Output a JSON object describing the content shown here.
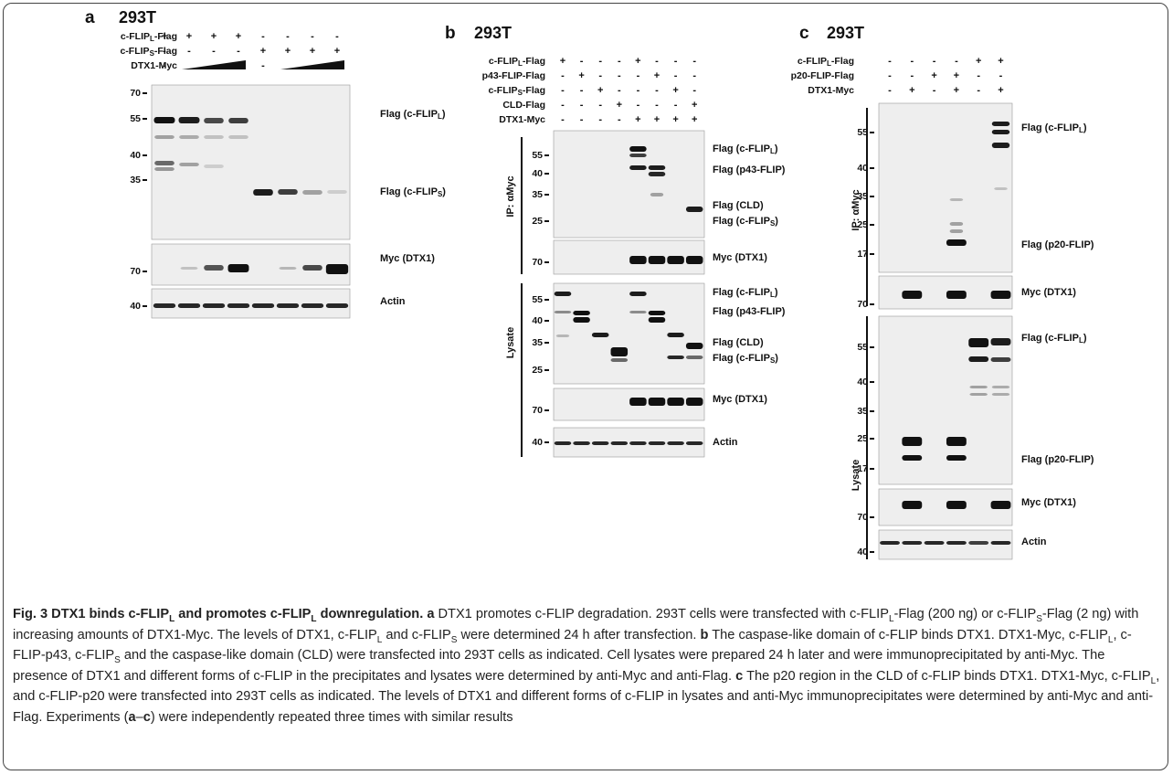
{
  "panels": [
    {
      "letter": "a",
      "cell": "293T",
      "rows": [
        {
          "label": {
            "text": "c-FLIP",
            "sub": "L",
            "rest": "-Flag"
          },
          "signs": [
            "+",
            "+",
            "+",
            "+",
            "-",
            "-",
            "-",
            "-"
          ]
        },
        {
          "label": {
            "text": "c-FLIP",
            "sub": "S",
            "rest": "-Flag"
          },
          "signs": [
            "-",
            "-",
            "-",
            "-",
            "+",
            "+",
            "+",
            "+"
          ]
        },
        {
          "label": "DTX1-Myc",
          "signs": [
            "-",
            null,
            null,
            null,
            "-",
            null,
            null,
            null
          ]
        }
      ],
      "blots": [
        {
          "markers": [
            70,
            55,
            40,
            35
          ],
          "labels": [
            {
              "text": "Flag (c-FLIP",
              "sub": "L",
              "rest": ")"
            },
            {
              "text": "Flag (c-FLIP",
              "sub": "S",
              "rest": ")"
            }
          ]
        },
        {
          "markers": [
            70
          ],
          "labels": [
            "Myc (DTX1)"
          ]
        },
        {
          "markers": [
            40
          ],
          "labels": [
            "Actin"
          ]
        }
      ],
      "groups": []
    },
    {
      "letter": "b",
      "cell": "293T",
      "rows": [
        {
          "label": {
            "text": "c-FLIP",
            "sub": "L",
            "rest": "-Flag"
          },
          "signs": [
            "+",
            "-",
            "-",
            "-",
            "+",
            "-",
            "-",
            "-"
          ]
        },
        {
          "label": "p43-FLIP-Flag",
          "signs": [
            "-",
            "+",
            "-",
            "-",
            "-",
            "+",
            "-",
            "-"
          ]
        },
        {
          "label": {
            "text": "c-FLIP",
            "sub": "S",
            "rest": "-Flag"
          },
          "signs": [
            "-",
            "-",
            "+",
            "-",
            "-",
            "-",
            "+",
            "-"
          ]
        },
        {
          "label": "CLD-Flag",
          "signs": [
            "-",
            "-",
            "-",
            "+",
            "-",
            "-",
            "-",
            "+"
          ]
        },
        {
          "label": "DTX1-Myc",
          "signs": [
            "-",
            "-",
            "-",
            "-",
            "+",
            "+",
            "+",
            "+"
          ]
        }
      ],
      "blots": [
        {
          "markers": [
            55,
            40,
            35,
            25
          ],
          "labels": [
            {
              "text": "Flag (c-FLIP",
              "sub": "L",
              "rest": ")"
            },
            "Flag (p43-FLIP)",
            "Flag (CLD)",
            {
              "text": "Flag (c-FLIP",
              "sub": "S",
              "rest": ")"
            }
          ]
        },
        {
          "markers": [
            70
          ],
          "labels": [
            "Myc (DTX1)"
          ]
        },
        {
          "markers": [
            55,
            40,
            35,
            25
          ],
          "labels": [
            {
              "text": "Flag (c-FLIP",
              "sub": "L",
              "rest": ")"
            },
            "Flag (p43-FLIP)",
            "Flag (CLD)",
            {
              "text": "Flag (c-FLIP",
              "sub": "S",
              "rest": ")"
            }
          ]
        },
        {
          "markers": [
            70
          ],
          "labels": [
            "Myc (DTX1)"
          ]
        },
        {
          "markers": [
            40
          ],
          "labels": [
            "Actin"
          ]
        }
      ],
      "groups": [
        "IP: αMyc",
        "Lysate"
      ]
    },
    {
      "letter": "c",
      "cell": "293T",
      "rows": [
        {
          "label": {
            "text": "c-FLIP",
            "sub": "L",
            "rest": "-Flag"
          },
          "signs": [
            "-",
            "-",
            "-",
            "-",
            "+",
            "+"
          ]
        },
        {
          "label": "p20-FLIP-Flag",
          "signs": [
            "-",
            "-",
            "+",
            "+",
            "-",
            "-"
          ]
        },
        {
          "label": "DTX1-Myc",
          "signs": [
            "-",
            "+",
            "-",
            "+",
            "-",
            "+"
          ]
        }
      ],
      "blots": [
        {
          "markers": [
            55,
            40,
            35,
            25,
            17
          ],
          "labels": [
            {
              "text": "Flag (c-FLIP",
              "sub": "L",
              "rest": ")"
            },
            "Flag (p20-FLIP)"
          ]
        },
        {
          "markers": [
            70
          ],
          "labels": [
            "Myc (DTX1)"
          ]
        },
        {
          "markers": [
            55,
            40,
            35,
            25,
            17
          ],
          "labels": [
            {
              "text": "Flag (c-FLIP",
              "sub": "L",
              "rest": ")"
            },
            "Flag (p20-FLIP)"
          ]
        },
        {
          "markers": [
            70
          ],
          "labels": [
            "Myc (DTX1)"
          ]
        },
        {
          "markers": [
            40
          ],
          "labels": [
            "Actin"
          ]
        }
      ],
      "groups": [
        "IP: αMyc",
        "Lysate"
      ]
    }
  ],
  "caption": [
    {
      "t": "Fig. 3 DTX1 binds c-FLIP",
      "b": true
    },
    {
      "t": "L",
      "b": true,
      "sub": true
    },
    {
      "t": " and promotes c-FLIP",
      "b": true
    },
    {
      "t": "L",
      "b": true,
      "sub": true
    },
    {
      "t": " downregulation.",
      "b": true
    },
    {
      "t": " a",
      "b": true
    },
    {
      "t": " DTX1 promotes c-FLIP degradation. 293T cells were transfected with c-FLIP"
    },
    {
      "t": "L",
      "sub": true
    },
    {
      "t": "-Flag (200 ng) or c-FLIP"
    },
    {
      "t": "S",
      "sub": true
    },
    {
      "t": "-Flag (2 ng) with increasing amounts of DTX1-Myc. The levels of DTX1, c-FLIP"
    },
    {
      "t": "L",
      "sub": true
    },
    {
      "t": " and c-FLIP"
    },
    {
      "t": "S",
      "sub": true
    },
    {
      "t": " were determined 24 h after transfection. "
    },
    {
      "t": "b",
      "b": true
    },
    {
      "t": " The caspase-like domain of c-FLIP binds DTX1. DTX1-Myc, c-FLIP"
    },
    {
      "t": "L",
      "sub": true
    },
    {
      "t": ", c-FLIP-p43, c-FLIP"
    },
    {
      "t": "S",
      "sub": true
    },
    {
      "t": " and the caspase-like domain (CLD) were transfected into 293T cells as indicated. Cell lysates were prepared 24 h later and were immunoprecipitated by anti-Myc. The presence of DTX1 and different forms of c-FLIP in the precipitates and lysates were determined by anti-Myc and anti-Flag. "
    },
    {
      "t": "c",
      "b": true
    },
    {
      "t": " The p20 region in the CLD of c-FLIP binds DTX1. DTX1-Myc, c-FLIP"
    },
    {
      "t": "L",
      "sub": true
    },
    {
      "t": ", and c-FLIP-p20 were transfected into 293T cells as indicated. The levels of DTX1 and different forms of c-FLIP in lysates and anti-Myc immunoprecipitates were determined by anti-Myc and anti-Flag. Experiments ("
    },
    {
      "t": "a",
      "b": true
    },
    {
      "t": "–"
    },
    {
      "t": "c",
      "b": true
    },
    {
      "t": ") were independently repeated three times with similar results"
    }
  ]
}
